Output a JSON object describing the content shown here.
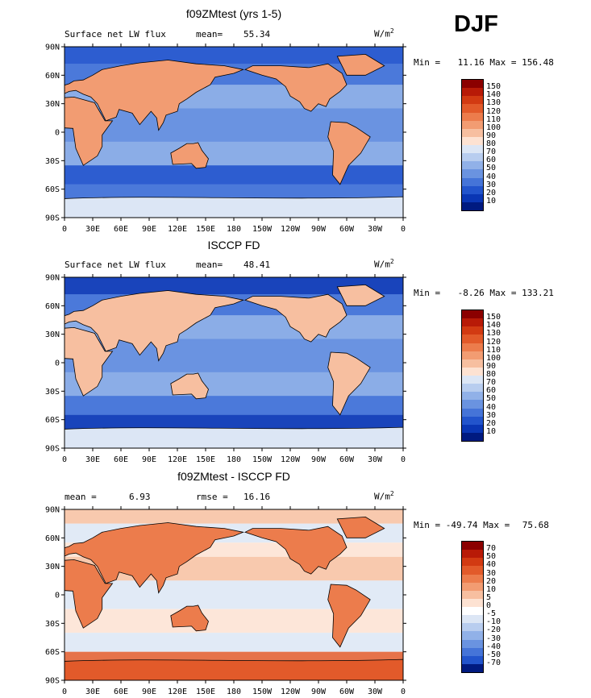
{
  "season_label": "DJF",
  "chart_data": [
    {
      "type": "heatmap",
      "title": "f09ZMtest (yrs 1-5)",
      "subtitle": "Surface net LW flux",
      "mean_label": "mean=",
      "mean_value": "55.34",
      "units": "W/m",
      "units_exp": "2",
      "min_label": "Min =",
      "min_value": "11.16",
      "max_label": "Max =",
      "max_value": "156.48",
      "lat_ticks": [
        "90N",
        "60N",
        "30N",
        "0",
        "30S",
        "60S",
        "90S"
      ],
      "lon_ticks": [
        "0",
        "30E",
        "60E",
        "90E",
        "120E",
        "150E",
        "180",
        "150W",
        "120W",
        "90W",
        "60W",
        "30W",
        "0"
      ],
      "colorbar_labels": [
        "150",
        "140",
        "130",
        "120",
        "110",
        "100",
        "90",
        "80",
        "70",
        "60",
        "50",
        "40",
        "30",
        "20",
        "10"
      ],
      "colorbar_colors": [
        "#8b0000",
        "#b81a07",
        "#d23a12",
        "#e25a2a",
        "#ec7c4c",
        "#f29c72",
        "#f7bfa0",
        "#fde2d2",
        "#dce6f5",
        "#b8cdef",
        "#91b1e8",
        "#6a93e0",
        "#4574d8",
        "#2254cc",
        "#0a36b4",
        "#001a80"
      ]
    },
    {
      "type": "heatmap",
      "title": "ISCCP FD",
      "subtitle": "Surface net LW flux",
      "mean_label": "mean=",
      "mean_value": "48.41",
      "units": "W/m",
      "units_exp": "2",
      "min_label": "Min =",
      "min_value": "-8.26",
      "max_label": "Max =",
      "max_value": "133.21",
      "lat_ticks": [
        "90N",
        "60N",
        "30N",
        "0",
        "30S",
        "60S",
        "90S"
      ],
      "lon_ticks": [
        "0",
        "30E",
        "60E",
        "90E",
        "120E",
        "150E",
        "180",
        "150W",
        "120W",
        "90W",
        "60W",
        "30W",
        "0"
      ],
      "colorbar_labels": [
        "150",
        "140",
        "130",
        "120",
        "110",
        "100",
        "90",
        "80",
        "70",
        "60",
        "50",
        "40",
        "30",
        "20",
        "10"
      ],
      "colorbar_colors": [
        "#8b0000",
        "#b81a07",
        "#d23a12",
        "#e25a2a",
        "#ec7c4c",
        "#f29c72",
        "#f7bfa0",
        "#fde2d2",
        "#dce6f5",
        "#b8cdef",
        "#91b1e8",
        "#6a93e0",
        "#4574d8",
        "#2254cc",
        "#0a36b4",
        "#001a80"
      ]
    },
    {
      "type": "heatmap",
      "title": "f09ZMtest - ISCCP FD",
      "subtitle": "mean =",
      "mean_value": "6.93",
      "rmse_label": "rmse =",
      "rmse_value": "16.16",
      "units": "W/m",
      "units_exp": "2",
      "min_label": "Min =",
      "min_value": "-49.74",
      "max_label": "Max =",
      "max_value": "75.68",
      "lat_ticks": [
        "90N",
        "60N",
        "30N",
        "0",
        "30S",
        "60S",
        "90S"
      ],
      "lon_ticks": [
        "0",
        "30E",
        "60E",
        "90E",
        "120E",
        "150E",
        "180",
        "150W",
        "120W",
        "90W",
        "60W",
        "30W",
        "0"
      ],
      "colorbar_labels": [
        "70",
        "50",
        "40",
        "30",
        "20",
        "10",
        "5",
        "0",
        "-5",
        "-10",
        "-20",
        "-30",
        "-40",
        "-50",
        "-70"
      ],
      "colorbar_colors": [
        "#8b0000",
        "#b81a07",
        "#d23a12",
        "#e25a2a",
        "#ec7c4c",
        "#f29c72",
        "#f7bfa0",
        "#fde2d2",
        "#ffffff",
        "#dce6f5",
        "#b8cdef",
        "#91b1e8",
        "#6a93e0",
        "#4574d8",
        "#2254cc",
        "#001a80"
      ]
    }
  ]
}
